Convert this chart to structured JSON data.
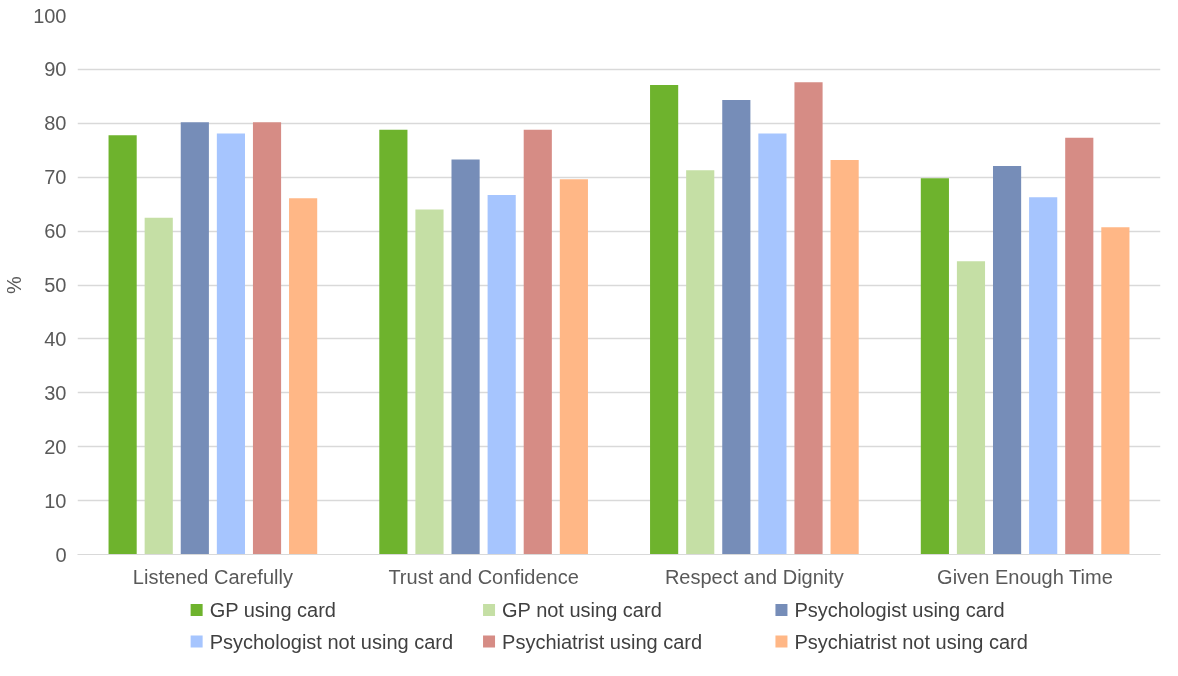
{
  "chart_data": {
    "type": "bar",
    "ylabel": "%",
    "categories": [
      "Listened Carefully",
      "Trust and Confidence",
      "Respect and Dignity",
      "Given Enough Time"
    ],
    "series": [
      {
        "name": "GP using card",
        "color": "#6eb32d",
        "values": [
          77.8,
          78.8,
          87.1,
          69.8
        ]
      },
      {
        "name": "GP not using card",
        "color": "#c5dfa5",
        "values": [
          62.5,
          64.0,
          71.3,
          54.4
        ]
      },
      {
        "name": "Psychologist using card",
        "color": "#768db8",
        "values": [
          80.2,
          73.3,
          84.3,
          72.1
        ]
      },
      {
        "name": "Psychologist not using card",
        "color": "#a6c5fe",
        "values": [
          78.1,
          66.7,
          78.1,
          66.3
        ]
      },
      {
        "name": "Psychiatrist using card",
        "color": "#d68c85",
        "values": [
          80.2,
          78.8,
          87.6,
          77.3
        ]
      },
      {
        "name": "Psychiatrist not using card",
        "color": "#ffb786",
        "values": [
          66.1,
          69.6,
          73.2,
          60.7
        ]
      }
    ],
    "ylim": [
      0,
      100
    ],
    "yticks": [
      0,
      10,
      20,
      30,
      40,
      50,
      60,
      70,
      80,
      90,
      100
    ],
    "grid": "y",
    "legend": "bottom"
  }
}
